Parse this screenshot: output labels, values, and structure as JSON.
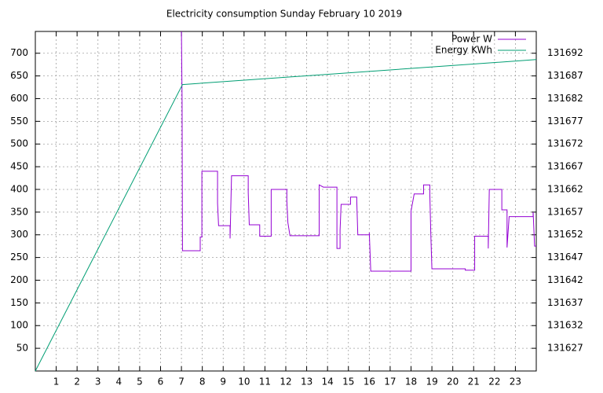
{
  "chart_data": {
    "type": "line",
    "title": "Electricity consumption Sunday February 10 2019",
    "xlim": [
      0,
      24
    ],
    "xticks": [
      1,
      2,
      3,
      4,
      5,
      6,
      7,
      8,
      9,
      10,
      11,
      12,
      13,
      14,
      15,
      16,
      17,
      18,
      19,
      20,
      21,
      22,
      23
    ],
    "ylim": [
      0,
      748
    ],
    "yticks": [
      50,
      100,
      150,
      200,
      250,
      300,
      350,
      400,
      450,
      500,
      550,
      600,
      650,
      700
    ],
    "y2lim": [
      131622,
      131696.8
    ],
    "y2ticks": [
      131627,
      131632,
      131637,
      131642,
      131647,
      131652,
      131657,
      131662,
      131667,
      131672,
      131677,
      131682,
      131687,
      131692
    ],
    "grid": true,
    "legend": "top-right",
    "series": [
      {
        "name": "Power W",
        "color": "#9400d3",
        "x": [
          7.0,
          7.03,
          7.05,
          7.9,
          7.9,
          7.98,
          7.98,
          8.73,
          8.73,
          8.78,
          9.33,
          9.33,
          9.4,
          10.2,
          10.2,
          10.25,
          10.75,
          10.75,
          11.3,
          11.3,
          12.05,
          12.05,
          12.1,
          12.2,
          13.6,
          13.6,
          13.8,
          14.45,
          14.45,
          14.6,
          14.6,
          14.65,
          15.1,
          15.1,
          15.4,
          15.4,
          15.45,
          16.0,
          16.0,
          16.07,
          18.0,
          18.0,
          18.15,
          18.6,
          18.6,
          18.9,
          18.9,
          18.95,
          19.0,
          20.6,
          20.6,
          21.05,
          21.05,
          21.7,
          21.7,
          21.75,
          22.35,
          22.35,
          22.6,
          22.6,
          22.7,
          23.85,
          23.85,
          23.92,
          24.0
        ],
        "values": [
          748,
          600,
          265,
          265,
          295,
          295,
          440,
          440,
          370,
          320,
          320,
          292,
          430,
          430,
          393,
          322,
          322,
          297,
          297,
          400,
          400,
          375,
          327,
          298,
          298,
          410,
          405,
          405,
          270,
          270,
          310,
          367,
          367,
          383,
          383,
          375,
          300,
          300,
          305,
          220,
          220,
          352,
          390,
          390,
          410,
          410,
          390,
          298,
          225,
          225,
          222,
          222,
          297,
          297,
          270,
          400,
          400,
          355,
          355,
          272,
          340,
          340,
          350,
          275,
          275
        ]
      },
      {
        "name": "Energy KWh",
        "color": "#009e73",
        "axis": "y2",
        "x": [
          0,
          7.05,
          24
        ],
        "values": [
          131622,
          131685.1,
          131690.6
        ]
      }
    ]
  }
}
